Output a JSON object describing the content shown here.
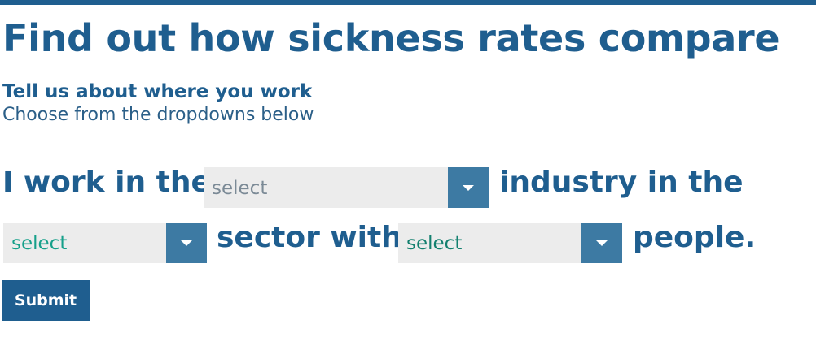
{
  "header": {
    "title": "Find out how sickness rates compare"
  },
  "intro": {
    "heading": "Tell us about where you work",
    "subheading": "Choose from the dropdowns below"
  },
  "form": {
    "text_1": "I work in the",
    "text_2": "industry in the",
    "text_3": "sector with",
    "text_4": "people.",
    "industry_select": {
      "value": "select"
    },
    "sector_select": {
      "value": "select"
    },
    "size_select": {
      "value": "select"
    },
    "submit_label": "Submit"
  },
  "colors": {
    "brand": "#1f5e8f",
    "dropdown_bg": "#ececec",
    "dropdown_arrow_bg": "#3d7aa3",
    "placeholder_gray": "#7b8a96",
    "placeholder_teal": "#16a08a"
  }
}
